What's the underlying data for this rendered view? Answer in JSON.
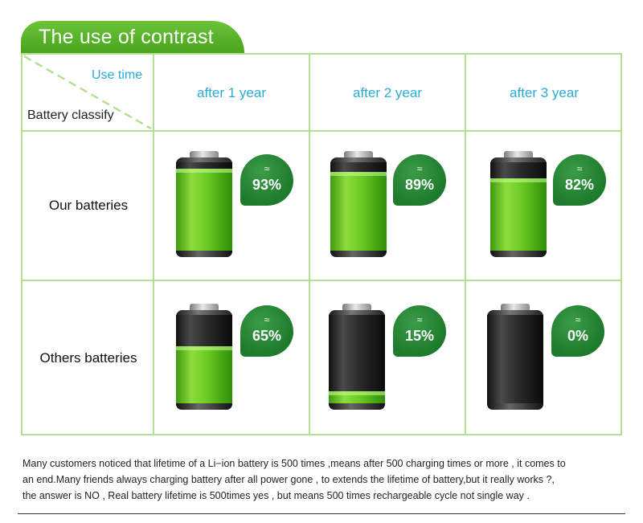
{
  "title": "The use of contrast",
  "header": {
    "use_time": "Use time",
    "battery_classify": "Battery classify"
  },
  "columns": [
    "after 1 year",
    "after 2 year",
    "after 3 year"
  ],
  "rows": [
    {
      "label": "Our batteries",
      "cells": [
        {
          "approx": "≈",
          "percent": "93%",
          "level": 0.93
        },
        {
          "approx": "≈",
          "percent": "89%",
          "level": 0.89
        },
        {
          "approx": "≈",
          "percent": "82%",
          "level": 0.82
        }
      ]
    },
    {
      "label": "Others batteries",
      "cells": [
        {
          "approx": "≈",
          "percent": "65%",
          "level": 0.65
        },
        {
          "approx": "≈",
          "percent": "15%",
          "level": 0.15
        },
        {
          "approx": "≈",
          "percent": "0%",
          "level": 0.0
        }
      ]
    }
  ],
  "note": {
    "line1": "Many customers noticed that lifetime of a Li−ion battery is 500 times ,means after 500 charging times or more , it comes to",
    "line2": "an end.Many friends always charging battery after all power gone , to extends the lifetime of battery,but it really works ?,",
    "line3": "the answer is NO , Real battery lifetime is 500times yes , but means 500 times rechargeable cycle not single way ."
  },
  "colors": {
    "banner_green": "#56b128",
    "grid_line": "#b6df95",
    "header_blue": "#2aaad8",
    "badge_green": "#1e7a2c"
  }
}
